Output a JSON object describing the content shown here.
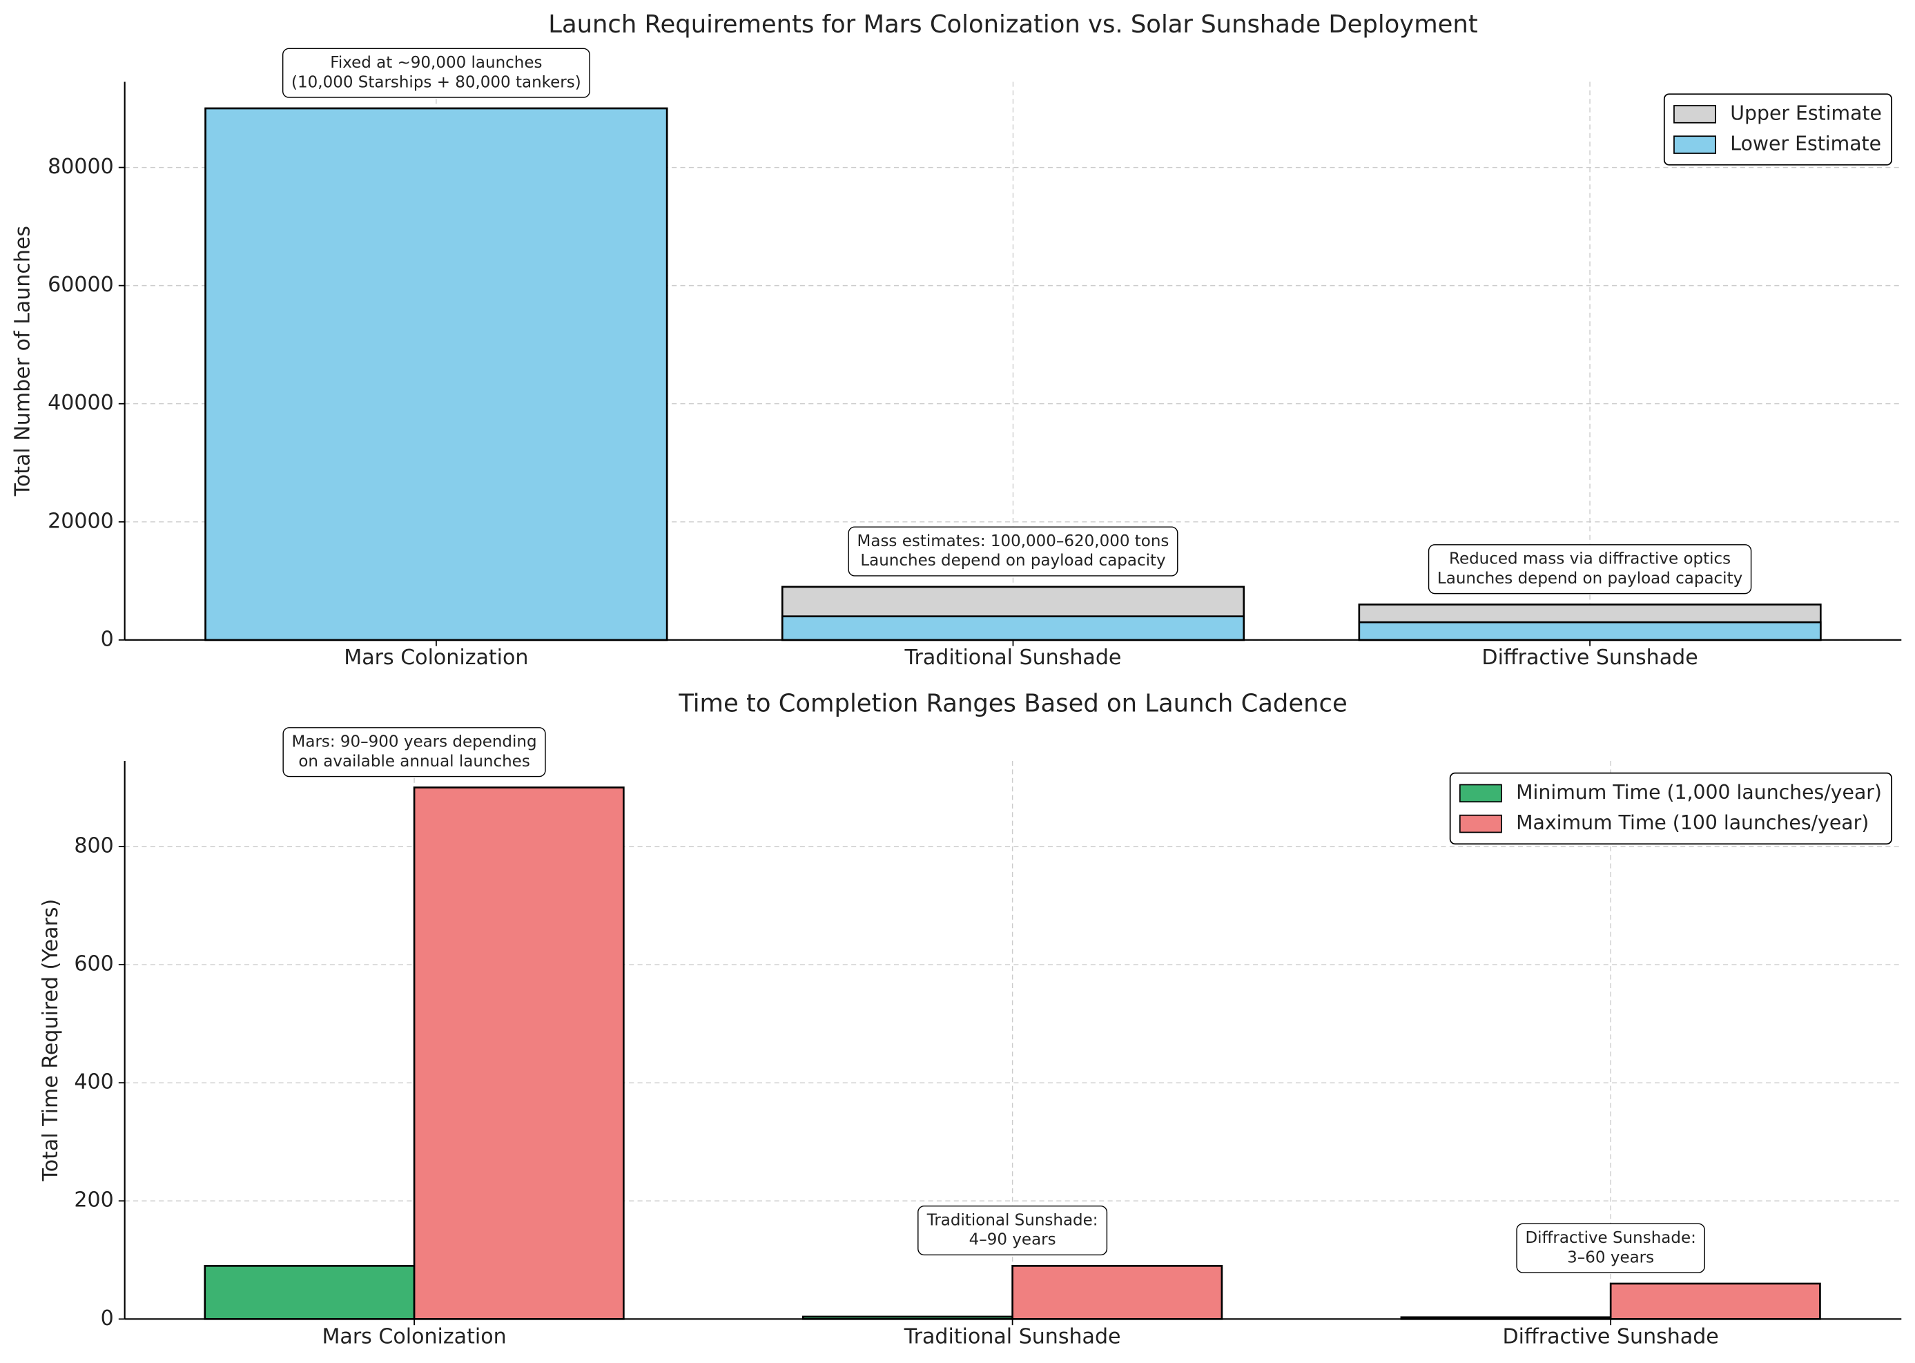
{
  "chart_data": [
    {
      "type": "bar",
      "mode": "overlay",
      "title": "Launch Requirements for Mars Colonization vs. Solar Sunshade Deployment",
      "ylabel": "Total Number of Launches",
      "categories": [
        "Mars Colonization",
        "Traditional Sunshade",
        "Diffractive Sunshade"
      ],
      "series": [
        {
          "name": "Upper Estimate",
          "color": "#d3d3d3",
          "values": [
            90000,
            9000,
            6000
          ]
        },
        {
          "name": "Lower Estimate",
          "color": "#87ceeb",
          "values": [
            90000,
            4000,
            3000
          ]
        }
      ],
      "ylim": [
        0,
        94500
      ],
      "yticks": [
        0,
        20000,
        40000,
        60000,
        80000
      ],
      "annotations": [
        [
          "Fixed at ~90,000 launches",
          "(10,000 Starships + 80,000 tankers)"
        ],
        [
          "Mass estimates: 100,000–620,000 tons",
          "Launches depend on payload capacity"
        ],
        [
          "Reduced mass via diffractive optics",
          "Launches depend on payload capacity"
        ]
      ],
      "legend": "upper right",
      "grid": true
    },
    {
      "type": "bar",
      "mode": "grouped",
      "title": "Time to Completion Ranges Based on Launch Cadence",
      "ylabel": "Total Time Required (Years)",
      "categories": [
        "Mars Colonization",
        "Traditional Sunshade",
        "Diffractive Sunshade"
      ],
      "series": [
        {
          "name": "Minimum Time (1,000 launches/year)",
          "color": "#3cb371",
          "values": [
            90,
            4,
            3
          ]
        },
        {
          "name": "Maximum Time (100 launches/year)",
          "color": "#f08080",
          "values": [
            900,
            90,
            60
          ]
        }
      ],
      "ylim": [
        0,
        945
      ],
      "yticks": [
        0,
        200,
        400,
        600,
        800
      ],
      "annotations": [
        [
          "Mars: 90–900 years depending",
          "on available annual launches"
        ],
        [
          "Traditional Sunshade:",
          "4–90 years"
        ],
        [
          "Diffractive Sunshade:",
          "3–60 years"
        ]
      ],
      "legend": "upper right",
      "grid": true
    }
  ]
}
